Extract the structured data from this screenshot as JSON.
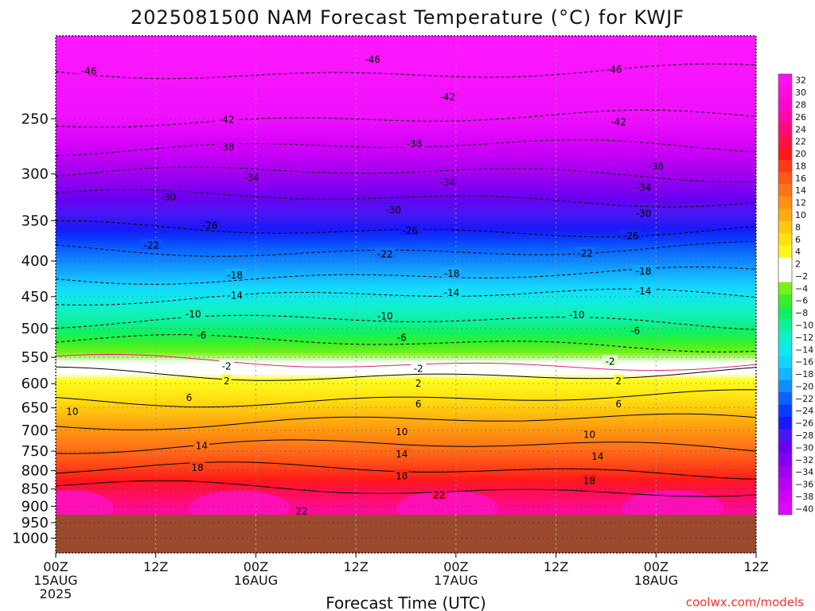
{
  "title": "2025081500 NAM Forecast Temperature (°C) for KWJF",
  "xlabel": "Forecast Time (UTC)",
  "credit": "coolwx.com/models",
  "colors": {
    "ground": "#9b4a2d",
    "freezing_line": "#e0207a",
    "contour": "#000000",
    "grid": "#9a9a9a"
  },
  "chart_data": {
    "type": "heatmap",
    "title": "2025081500 NAM Forecast Temperature (°C) for KWJF",
    "xlabel": "Forecast Time (UTC)",
    "ylabel": "",
    "x_hours": [
      0,
      12,
      24,
      36,
      48,
      60,
      72,
      84
    ],
    "x_ticks": [
      {
        "hour": 0,
        "lines": [
          "00Z",
          "15AUG",
          "2025"
        ]
      },
      {
        "hour": 12,
        "lines": [
          "12Z"
        ]
      },
      {
        "hour": 24,
        "lines": [
          "00Z",
          "16AUG"
        ]
      },
      {
        "hour": 36,
        "lines": [
          "12Z"
        ]
      },
      {
        "hour": 48,
        "lines": [
          "00Z",
          "17AUG"
        ]
      },
      {
        "hour": 60,
        "lines": [
          "12Z"
        ]
      },
      {
        "hour": 72,
        "lines": [
          "00Z",
          "18AUG"
        ]
      },
      {
        "hour": 84,
        "lines": [
          "12Z"
        ]
      }
    ],
    "y_pressure_ticks": [
      250,
      300,
      350,
      400,
      450,
      500,
      550,
      600,
      650,
      700,
      750,
      800,
      850,
      900,
      950,
      1000
    ],
    "ylim_hpa": [
      1050,
      190
    ],
    "y_scale": "log",
    "surface_pressure_hpa": 925,
    "colorbar_ticks": [
      32,
      30,
      28,
      26,
      24,
      22,
      20,
      18,
      16,
      14,
      12,
      10,
      8,
      6,
      4,
      2,
      -2,
      -4,
      -6,
      -8,
      -10,
      -12,
      -14,
      -16,
      -18,
      -20,
      -22,
      -24,
      -26,
      -28,
      -30,
      -32,
      -34,
      -36,
      -38,
      -40
    ],
    "temperature_profile": [
      {
        "hpa": 200,
        "t": -47
      },
      {
        "hpa": 250,
        "t": -42
      },
      {
        "hpa": 275,
        "t": -38
      },
      {
        "hpa": 300,
        "t": -34
      },
      {
        "hpa": 325,
        "t": -30
      },
      {
        "hpa": 360,
        "t": -26
      },
      {
        "hpa": 385,
        "t": -22
      },
      {
        "hpa": 420,
        "t": -18
      },
      {
        "hpa": 450,
        "t": -14
      },
      {
        "hpa": 490,
        "t": -10
      },
      {
        "hpa": 525,
        "t": -6
      },
      {
        "hpa": 560,
        "t": -2
      },
      {
        "hpa": 580,
        "t": 2
      },
      {
        "hpa": 630,
        "t": 6
      },
      {
        "hpa": 680,
        "t": 10
      },
      {
        "hpa": 740,
        "t": 14
      },
      {
        "hpa": 800,
        "t": 18
      },
      {
        "hpa": 850,
        "t": 22
      },
      {
        "hpa": 925,
        "t": 26
      }
    ],
    "contour_labels": [
      {
        "value": -46,
        "hour": 4,
        "hpa": 213
      },
      {
        "value": -46,
        "hour": 38,
        "hpa": 205
      },
      {
        "value": -46,
        "hour": 67,
        "hpa": 212
      },
      {
        "value": -42,
        "hour": 20.5,
        "hpa": 250
      },
      {
        "value": -42,
        "hour": 47,
        "hpa": 232
      },
      {
        "value": -42,
        "hour": 67.5,
        "hpa": 252
      },
      {
        "value": -38,
        "hour": 20.5,
        "hpa": 274
      },
      {
        "value": -38,
        "hour": 43,
        "hpa": 271
      },
      {
        "value": -38,
        "hour": 72,
        "hpa": 292
      },
      {
        "value": -34,
        "hour": 23.5,
        "hpa": 303
      },
      {
        "value": -34,
        "hour": 47,
        "hpa": 308
      },
      {
        "value": -34,
        "hour": 70.5,
        "hpa": 313
      },
      {
        "value": -30,
        "hour": 13.5,
        "hpa": 323
      },
      {
        "value": -30,
        "hour": 40.5,
        "hpa": 337
      },
      {
        "value": -30,
        "hour": 70.5,
        "hpa": 341
      },
      {
        "value": -26,
        "hour": 18.5,
        "hpa": 355
      },
      {
        "value": -26,
        "hour": 42.5,
        "hpa": 361
      },
      {
        "value": -26,
        "hour": 69,
        "hpa": 367
      },
      {
        "value": -22,
        "hour": 11.5,
        "hpa": 379
      },
      {
        "value": -22,
        "hour": 39.5,
        "hpa": 390
      },
      {
        "value": -22,
        "hour": 63.5,
        "hpa": 389
      },
      {
        "value": -18,
        "hour": 21.5,
        "hpa": 418
      },
      {
        "value": -18,
        "hour": 47.5,
        "hpa": 416
      },
      {
        "value": -18,
        "hour": 70.5,
        "hpa": 413
      },
      {
        "value": -14,
        "hour": 21.5,
        "hpa": 447
      },
      {
        "value": -14,
        "hour": 47.5,
        "hpa": 443
      },
      {
        "value": -14,
        "hour": 70.5,
        "hpa": 441
      },
      {
        "value": -10,
        "hour": 16.5,
        "hpa": 476
      },
      {
        "value": -10,
        "hour": 39.5,
        "hpa": 479
      },
      {
        "value": -10,
        "hour": 62.5,
        "hpa": 477
      },
      {
        "value": -6,
        "hour": 17.5,
        "hpa": 510
      },
      {
        "value": -6,
        "hour": 41.5,
        "hpa": 514
      },
      {
        "value": -6,
        "hour": 69.5,
        "hpa": 503
      },
      {
        "value": -2,
        "hour": 20.5,
        "hpa": 565
      },
      {
        "value": -2,
        "hour": 43.5,
        "hpa": 570
      },
      {
        "value": -2,
        "hour": 66.5,
        "hpa": 556
      },
      {
        "value": 2,
        "hour": 20.5,
        "hpa": 593
      },
      {
        "value": 2,
        "hour": 43.5,
        "hpa": 598
      },
      {
        "value": 2,
        "hour": 67.5,
        "hpa": 593
      },
      {
        "value": 6,
        "hour": 16,
        "hpa": 627
      },
      {
        "value": 6,
        "hour": 43.5,
        "hpa": 640
      },
      {
        "value": 6,
        "hour": 67.5,
        "hpa": 640
      },
      {
        "value": 10,
        "hour": 2,
        "hpa": 657
      },
      {
        "value": 10,
        "hour": 41.5,
        "hpa": 702
      },
      {
        "value": 10,
        "hour": 64,
        "hpa": 709
      },
      {
        "value": 14,
        "hour": 17.5,
        "hpa": 735
      },
      {
        "value": 14,
        "hour": 41.5,
        "hpa": 756
      },
      {
        "value": 14,
        "hour": 65,
        "hpa": 762
      },
      {
        "value": 18,
        "hour": 17,
        "hpa": 790
      },
      {
        "value": 18,
        "hour": 41.5,
        "hpa": 812
      },
      {
        "value": 18,
        "hour": 64,
        "hpa": 825
      },
      {
        "value": 22,
        "hour": 46,
        "hpa": 865
      },
      {
        "value": 22,
        "hour": 29.5,
        "hpa": 912
      }
    ]
  }
}
